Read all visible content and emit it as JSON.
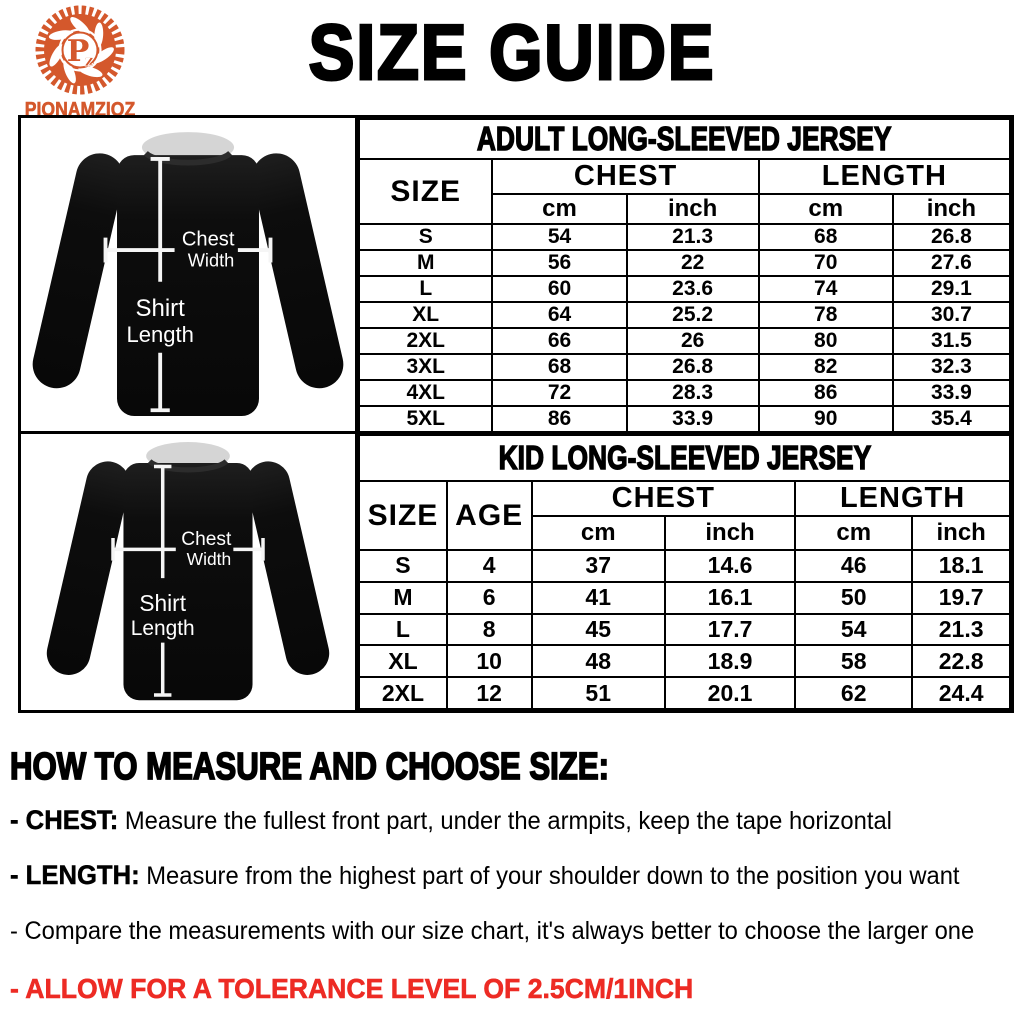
{
  "colors": {
    "brand": "#d4582c",
    "highlight": "#ed2b24",
    "jersey": "#0d0d0d",
    "annotation": "#f5f5f5"
  },
  "brand": {
    "name": "PIONAMZIOZ",
    "monogram_large": "P",
    "monogram_small": "z"
  },
  "title": "SIZE GUIDE",
  "diagram": {
    "chest_line1": "Chest",
    "chest_line2": "Width",
    "length_line1": "Shirt",
    "length_line2": "Length"
  },
  "adult_table": {
    "title": "ADULT LONG-SLEEVED JERSEY",
    "col_size": "SIZE",
    "group_headers": [
      "CHEST",
      "LENGTH"
    ],
    "unit_headers": [
      "cm",
      "inch",
      "cm",
      "inch"
    ],
    "rows": [
      [
        "S",
        "54",
        "21.3",
        "68",
        "26.8"
      ],
      [
        "M",
        "56",
        "22",
        "70",
        "27.6"
      ],
      [
        "L",
        "60",
        "23.6",
        "74",
        "29.1"
      ],
      [
        "XL",
        "64",
        "25.2",
        "78",
        "30.7"
      ],
      [
        "2XL",
        "66",
        "26",
        "80",
        "31.5"
      ],
      [
        "3XL",
        "68",
        "26.8",
        "82",
        "32.3"
      ],
      [
        "4XL",
        "72",
        "28.3",
        "86",
        "33.9"
      ],
      [
        "5XL",
        "86",
        "33.9",
        "90",
        "35.4"
      ]
    ]
  },
  "kid_table": {
    "title": "KID LONG-SLEEVED JERSEY",
    "col_size": "SIZE",
    "col_age": "AGE",
    "group_headers": [
      "CHEST",
      "LENGTH"
    ],
    "unit_headers": [
      "cm",
      "inch",
      "cm",
      "inch"
    ],
    "rows": [
      [
        "S",
        "4",
        "37",
        "14.6",
        "46",
        "18.1"
      ],
      [
        "M",
        "6",
        "41",
        "16.1",
        "50",
        "19.7"
      ],
      [
        "L",
        "8",
        "45",
        "17.7",
        "54",
        "21.3"
      ],
      [
        "XL",
        "10",
        "48",
        "18.9",
        "58",
        "22.8"
      ],
      [
        "2XL",
        "12",
        "51",
        "20.1",
        "62",
        "24.4"
      ]
    ]
  },
  "how_to": {
    "title": "HOW TO MEASURE AND CHOOSE SIZE:",
    "bullets": [
      {
        "label": "- CHEST:",
        "text": " Measure the fullest front part, under the armpits, keep the tape horizontal"
      },
      {
        "label": "- LENGTH:",
        "text": " Measure from the highest part of your shoulder down to the position you want"
      },
      {
        "label": "",
        "text": "- Compare the measurements with our size chart, it's always better to choose the larger one"
      },
      {
        "label": "",
        "text": "- ALLOW FOR A TOLERANCE LEVEL OF 2.5CM/1INCH"
      }
    ]
  }
}
